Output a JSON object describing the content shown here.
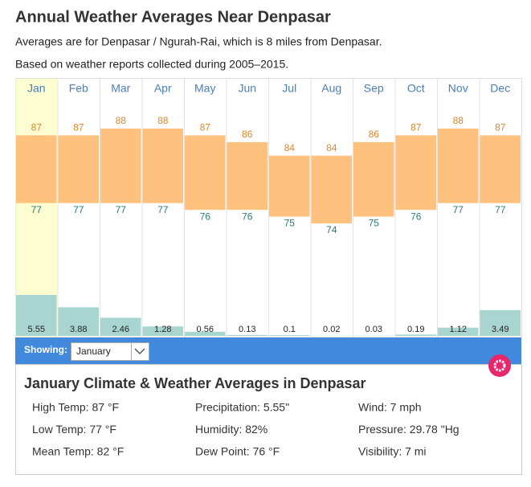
{
  "header": {
    "title": "Annual Weather Averages Near Denpasar",
    "subtitle": "Averages are for Denpasar / Ngurah-Rai, which is 8 miles from Denpasar.",
    "note": "Based on weather reports collected during 2005–2015."
  },
  "chart_data": {
    "type": "range-bar",
    "categories": [
      "Jan",
      "Feb",
      "Mar",
      "Apr",
      "May",
      "Jun",
      "Jul",
      "Aug",
      "Sep",
      "Oct",
      "Nov",
      "Dec"
    ],
    "series": [
      {
        "name": "High",
        "color": "#ffc17d",
        "values": [
          87,
          87,
          88,
          88,
          87,
          86,
          84,
          84,
          86,
          87,
          88,
          87
        ]
      },
      {
        "name": "Low",
        "color": "#ffc17d",
        "values": [
          77,
          77,
          77,
          77,
          76,
          76,
          75,
          74,
          75,
          76,
          77,
          77
        ]
      },
      {
        "name": "Precipitation",
        "color": "#a9d5d1",
        "values": [
          5.55,
          3.88,
          2.46,
          1.28,
          0.56,
          0.13,
          0.1,
          0.02,
          0.03,
          0.19,
          1.12,
          3.49
        ]
      }
    ]
  },
  "showing": {
    "label": "Showing:",
    "selected": "January"
  },
  "details": {
    "title": "January Climate & Weather Averages in Denpasar",
    "items": [
      "High Temp: 87 °F",
      "Precipitation: 5.55\"",
      "Wind: 7 mph",
      "Low Temp: 77 °F",
      "Humidity: 82%",
      "Pressure: 29.78 \"Hg",
      "Mean Temp: 82 °F",
      "Dew Point: 76 °F",
      "Visibility: 7 mi"
    ]
  }
}
